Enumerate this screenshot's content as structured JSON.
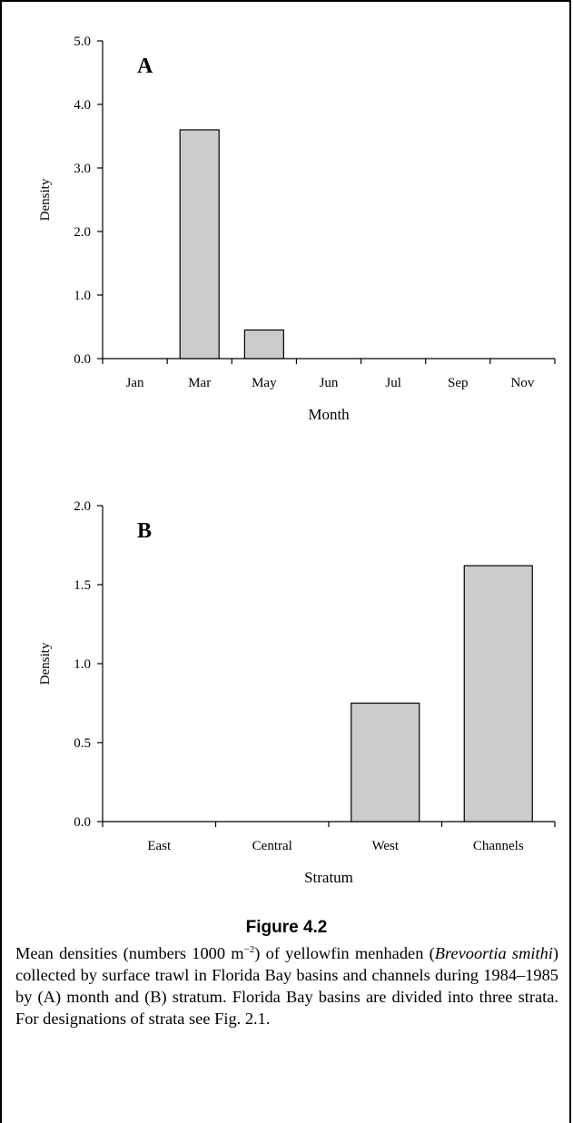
{
  "chart_data": [
    {
      "type": "bar",
      "panel_label": "A",
      "categories": [
        "Jan",
        "Mar",
        "May",
        "Jun",
        "Jul",
        "Sep",
        "Nov"
      ],
      "values": [
        0,
        3.6,
        0.45,
        0,
        0,
        0,
        0
      ],
      "xlabel": "Month",
      "ylabel": "Density",
      "ylim": [
        0,
        5
      ],
      "yticks": [
        "0.0",
        "1.0",
        "2.0",
        "3.0",
        "4.0",
        "5.0"
      ],
      "bar_color": "#cccccc",
      "grid": false
    },
    {
      "type": "bar",
      "panel_label": "B",
      "categories": [
        "East",
        "Central",
        "West",
        "Channels"
      ],
      "values": [
        0,
        0,
        0.75,
        1.62
      ],
      "xlabel": "Stratum",
      "ylabel": "Density",
      "ylim": [
        0,
        2
      ],
      "yticks": [
        "0.0",
        "0.5",
        "1.0",
        "1.5",
        "2.0"
      ],
      "bar_color": "#cccccc",
      "grid": false
    }
  ],
  "figure": {
    "title": "Figure 4.2",
    "caption_parts": {
      "p1": "Mean densities (numbers 1000 m",
      "sup": "−2",
      "p2": ") of yellowfin menhaden (",
      "species": "Brevoortia smithi",
      "p3": ") collected by surface trawl in Florida Bay basins and channels during 1984–1985 by (A) month and (B) stratum. Florida Bay basins are divided into three strata. For designations of strata see Fig. 2.1."
    }
  }
}
